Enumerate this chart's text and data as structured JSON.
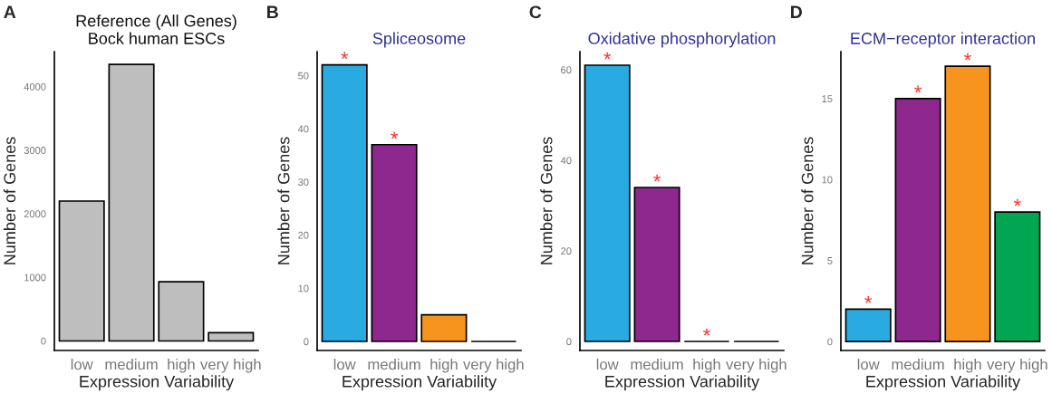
{
  "chart_data": [
    {
      "type": "bar",
      "title": "Reference (All Genes)\nBock human ESCs",
      "xlabel": "Expression Variability",
      "ylabel": "Number of Genes",
      "categories": [
        "low",
        "medium",
        "high",
        "very high"
      ],
      "values": [
        2200,
        4350,
        930,
        130
      ],
      "colors": [
        "#bebebe",
        "#bebebe",
        "#bebebe",
        "#bebebe"
      ],
      "ylim": [
        -150,
        4550
      ],
      "yticks": [
        0,
        1000,
        2000,
        3000,
        4000
      ],
      "grid": false,
      "annotations": [
        "A"
      ]
    },
    {
      "type": "bar",
      "title": "Spliceosome",
      "xlabel": "Expression Variability",
      "ylabel": "Number of Genes",
      "categories": [
        "low",
        "medium",
        "high",
        "very high"
      ],
      "values": [
        52,
        37,
        5,
        0
      ],
      "colors": [
        "#29abe2",
        "#8e288e",
        "#f7941d",
        "#000000"
      ],
      "ylim": [
        -1.7,
        54.5
      ],
      "yticks": [
        0,
        10,
        20,
        30,
        40,
        50
      ],
      "grid": false,
      "annotations": [
        "B",
        {
          "text": "*",
          "x": "low",
          "y": 52
        },
        {
          "text": "*",
          "x": "medium",
          "y": 37
        }
      ]
    },
    {
      "type": "bar",
      "title": "Oxidative phosphorylation",
      "xlabel": "Expression Variability",
      "ylabel": "Number of Genes",
      "categories": [
        "low",
        "medium",
        "high",
        "very high"
      ],
      "values": [
        61,
        34,
        0,
        0
      ],
      "colors": [
        "#29abe2",
        "#8e288e",
        "#000000",
        "#000000"
      ],
      "ylim": [
        -2,
        64
      ],
      "yticks": [
        0,
        20,
        40,
        60
      ],
      "grid": false,
      "annotations": [
        "C",
        {
          "text": "*",
          "x": "low",
          "y": 61
        },
        {
          "text": "*",
          "x": "medium",
          "y": 34
        },
        {
          "text": "*",
          "x": "high",
          "y": 0
        }
      ]
    },
    {
      "type": "bar",
      "title": "ECM−receptor interaction",
      "xlabel": "Expression Variability",
      "ylabel": "Number of Genes",
      "categories": [
        "low",
        "medium",
        "high",
        "very high"
      ],
      "values": [
        2,
        15,
        17,
        8
      ],
      "colors": [
        "#29abe2",
        "#8e288e",
        "#f7941d",
        "#00a651"
      ],
      "ylim": [
        -0.55,
        17.9
      ],
      "yticks": [
        0,
        5,
        10,
        15
      ],
      "grid": false,
      "annotations": [
        "D",
        {
          "text": "*",
          "x": "low",
          "y": 2
        },
        {
          "text": "*",
          "x": "medium",
          "y": 15
        },
        {
          "text": "*",
          "x": "high",
          "y": 17
        },
        {
          "text": "*",
          "x": "very high",
          "y": 8
        }
      ]
    }
  ]
}
